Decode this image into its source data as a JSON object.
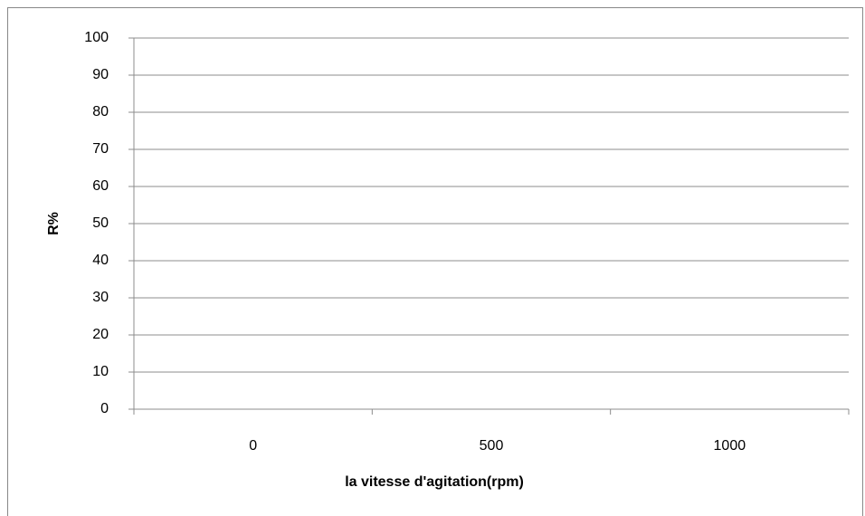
{
  "chart_data": {
    "type": "line",
    "categories": [
      "0",
      "500",
      "1000"
    ],
    "x_label": "la vitesse d'agitation(rpm)",
    "y_label": "R%",
    "ylim": [
      0,
      100
    ],
    "yticks": [
      0,
      10,
      20,
      30,
      40,
      50,
      60,
      70,
      80,
      90,
      100
    ],
    "grid": true,
    "series": []
  }
}
